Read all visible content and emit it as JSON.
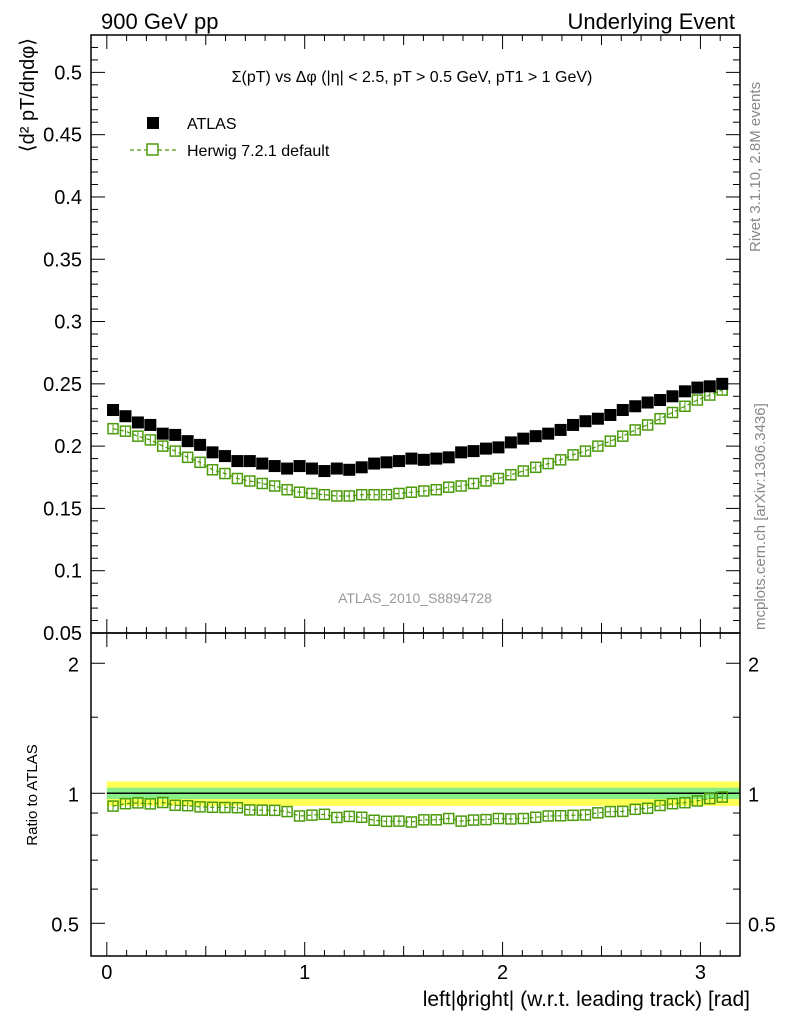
{
  "header": {
    "left": "900 GeV pp",
    "right": "Underlying Event"
  },
  "side_labels": {
    "rivet": "Rivet 3.1.10,  2.8M events",
    "mcplots": "mcplots.cern.ch [arXiv:1306.3436]"
  },
  "chart_data": [
    {
      "type": "scatter",
      "panel": "main",
      "title": "Σ(pT) vs Δφ (|η| < 2.5, pT > 0.5 GeV, pT1 > 1 GeV)",
      "analysis_label": "ATLAS_2010_S8894728",
      "ylabel": "⟨d² pT/dηdφ⟩",
      "xlim": [
        -0.08,
        3.2
      ],
      "ylim": [
        0.05,
        0.53
      ],
      "yticks": [
        0.05,
        0.1,
        0.15,
        0.2,
        0.25,
        0.3,
        0.35,
        0.4,
        0.45,
        0.5
      ],
      "ytick_labels": [
        "0.05",
        "0.1",
        "0.15",
        "0.2",
        "0.25",
        "0.3",
        "0.35",
        "0.4",
        "0.45",
        "0.5"
      ],
      "legend_position": "top-left",
      "series": [
        {
          "name": "ATLAS",
          "color": "#000000",
          "marker": "filled-square",
          "x": [
            0.0314,
            0.0942,
            0.1571,
            0.2199,
            0.2827,
            0.3456,
            0.4084,
            0.4712,
            0.5341,
            0.5969,
            0.6597,
            0.7226,
            0.7854,
            0.8482,
            0.9111,
            0.9739,
            1.0367,
            1.0996,
            1.1624,
            1.2252,
            1.2881,
            1.3509,
            1.4137,
            1.4765,
            1.5394,
            1.6022,
            1.665,
            1.7279,
            1.7907,
            1.8535,
            1.9164,
            1.9792,
            2.042,
            2.1049,
            2.1677,
            2.2305,
            2.2934,
            2.3562,
            2.419,
            2.4819,
            2.5447,
            2.6075,
            2.6704,
            2.7332,
            2.796,
            2.8588,
            2.9217,
            2.9845,
            3.0473,
            3.1102
          ],
          "y": [
            0.229,
            0.224,
            0.219,
            0.217,
            0.21,
            0.209,
            0.204,
            0.201,
            0.195,
            0.192,
            0.188,
            0.188,
            0.186,
            0.184,
            0.182,
            0.184,
            0.182,
            0.18,
            0.182,
            0.181,
            0.183,
            0.186,
            0.187,
            0.188,
            0.19,
            0.189,
            0.19,
            0.191,
            0.195,
            0.196,
            0.198,
            0.199,
            0.203,
            0.206,
            0.208,
            0.21,
            0.213,
            0.217,
            0.22,
            0.222,
            0.225,
            0.229,
            0.232,
            0.235,
            0.237,
            0.24,
            0.244,
            0.247,
            0.248,
            0.25
          ]
        },
        {
          "name": "Herwig 7.2.1 default",
          "color": "#4a9a0a",
          "marker": "open-square",
          "line": "dashed",
          "x": [
            0.0314,
            0.0942,
            0.1571,
            0.2199,
            0.2827,
            0.3456,
            0.4084,
            0.4712,
            0.5341,
            0.5969,
            0.6597,
            0.7226,
            0.7854,
            0.8482,
            0.9111,
            0.9739,
            1.0367,
            1.0996,
            1.1624,
            1.2252,
            1.2881,
            1.3509,
            1.4137,
            1.4765,
            1.5394,
            1.6022,
            1.665,
            1.7279,
            1.7907,
            1.8535,
            1.9164,
            1.9792,
            2.042,
            2.1049,
            2.1677,
            2.2305,
            2.2934,
            2.3562,
            2.419,
            2.4819,
            2.5447,
            2.6075,
            2.6704,
            2.7332,
            2.796,
            2.8588,
            2.9217,
            2.9845,
            3.0473,
            3.1102
          ],
          "y": [
            0.214,
            0.212,
            0.208,
            0.205,
            0.2,
            0.196,
            0.191,
            0.187,
            0.181,
            0.178,
            0.174,
            0.172,
            0.17,
            0.168,
            0.165,
            0.163,
            0.162,
            0.161,
            0.16,
            0.16,
            0.161,
            0.161,
            0.161,
            0.162,
            0.163,
            0.164,
            0.165,
            0.167,
            0.168,
            0.17,
            0.172,
            0.174,
            0.177,
            0.18,
            0.183,
            0.186,
            0.189,
            0.193,
            0.196,
            0.2,
            0.204,
            0.208,
            0.213,
            0.217,
            0.222,
            0.227,
            0.232,
            0.237,
            0.241,
            0.245
          ]
        }
      ]
    },
    {
      "type": "scatter",
      "panel": "ratio",
      "ylabel": "Ratio to ATLAS",
      "xlabel": "left|ϕright| (w.r.t. leading track) [rad]",
      "xlim": [
        -0.08,
        3.2
      ],
      "xticks": [
        0,
        1,
        2,
        3
      ],
      "xtick_labels": [
        "0",
        "1",
        "2",
        "3"
      ],
      "ylim": [
        0.42,
        2.35
      ],
      "log_y": true,
      "yticks": [
        0.5,
        1,
        2
      ],
      "ytick_labels": [
        "0.5",
        "1",
        "2"
      ],
      "reference_band": {
        "center": 1.0,
        "inner": 0.03,
        "outer": 0.065,
        "inner_color": "#88ee88",
        "outer_color": "#ffff55"
      },
      "series": [
        {
          "name": "Herwig 7.2.1 default",
          "color": "#4a9a0a",
          "marker": "open-square",
          "line": "dashed",
          "x": [
            0.0314,
            0.0942,
            0.1571,
            0.2199,
            0.2827,
            0.3456,
            0.4084,
            0.4712,
            0.5341,
            0.5969,
            0.6597,
            0.7226,
            0.7854,
            0.8482,
            0.9111,
            0.9739,
            1.0367,
            1.0996,
            1.1624,
            1.2252,
            1.2881,
            1.3509,
            1.4137,
            1.4765,
            1.5394,
            1.6022,
            1.665,
            1.7279,
            1.7907,
            1.8535,
            1.9164,
            1.9792,
            2.042,
            2.1049,
            2.1677,
            2.2305,
            2.2934,
            2.3562,
            2.419,
            2.4819,
            2.5447,
            2.6075,
            2.6704,
            2.7332,
            2.796,
            2.8588,
            2.9217,
            2.9845,
            3.0473,
            3.1102
          ],
          "y": [
            0.934,
            0.946,
            0.95,
            0.945,
            0.952,
            0.938,
            0.936,
            0.93,
            0.928,
            0.927,
            0.926,
            0.915,
            0.914,
            0.913,
            0.907,
            0.886,
            0.89,
            0.894,
            0.879,
            0.884,
            0.88,
            0.866,
            0.861,
            0.862,
            0.858,
            0.868,
            0.868,
            0.874,
            0.862,
            0.867,
            0.869,
            0.874,
            0.872,
            0.874,
            0.88,
            0.886,
            0.887,
            0.889,
            0.891,
            0.901,
            0.907,
            0.908,
            0.918,
            0.923,
            0.937,
            0.946,
            0.951,
            0.96,
            0.972,
            0.98
          ]
        }
      ]
    }
  ]
}
